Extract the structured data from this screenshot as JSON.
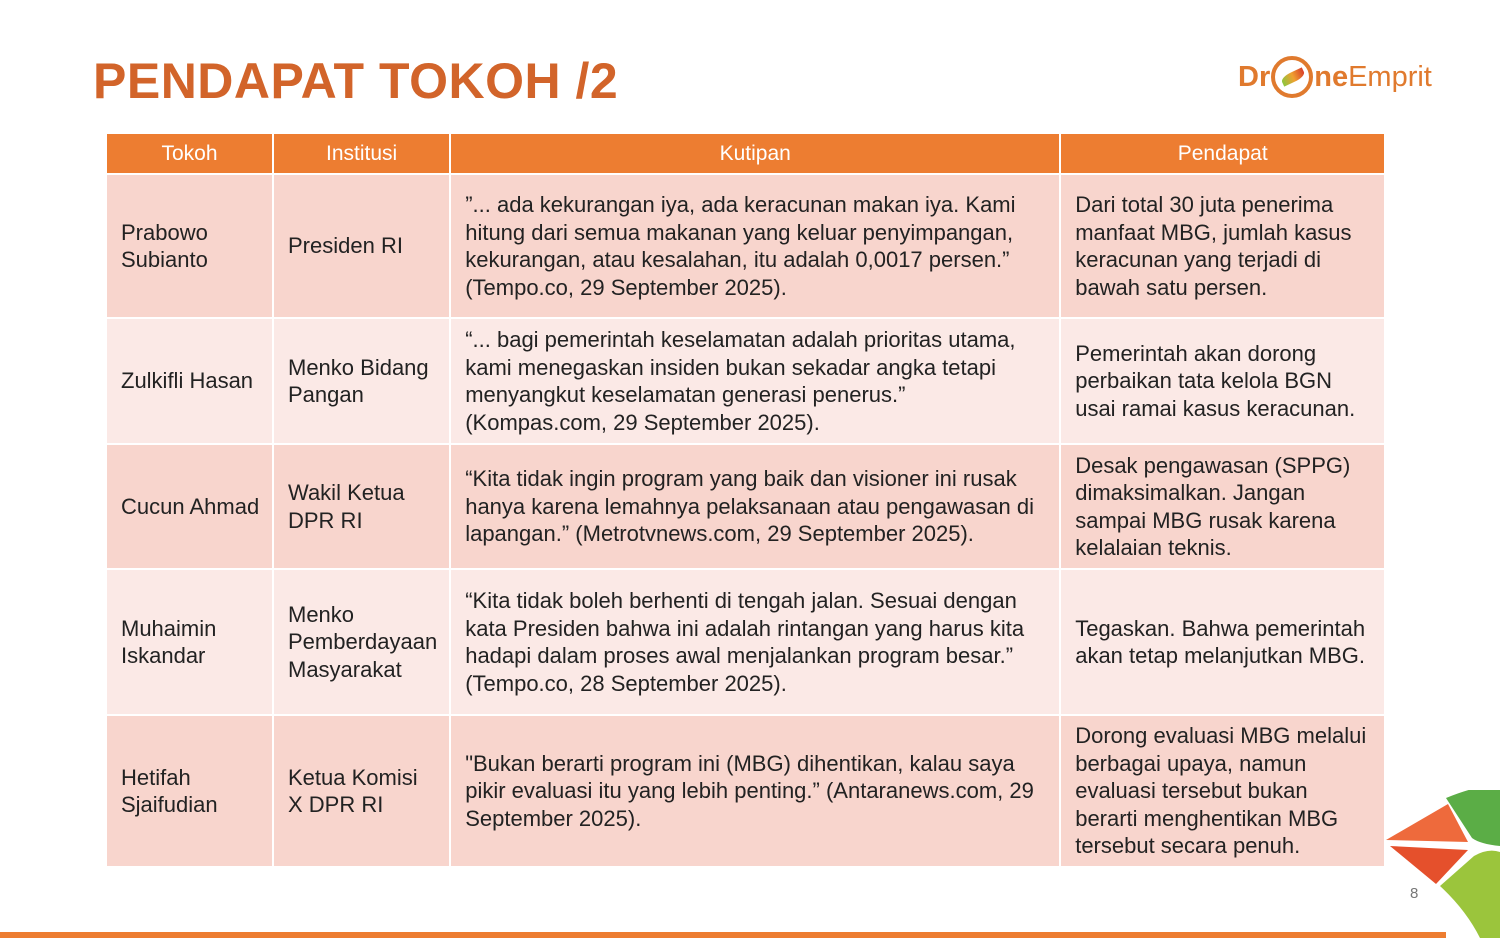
{
  "title": "PENDAPAT TOKOH /2",
  "logo": {
    "pre": "Dr",
    "post_bold": "ne",
    "post": "Emprit"
  },
  "table": {
    "headers": [
      "Tokoh",
      "Institusi",
      "Kutipan",
      "Pendapat"
    ],
    "rows": [
      {
        "tokoh": "Prabowo Subianto",
        "institusi": "Presiden RI",
        "kutipan": "”... ada kekurangan iya, ada keracunan makan iya. Kami hitung dari semua makanan yang keluar penyimpangan, kekurangan, atau kesalahan, itu adalah 0,0017 persen.” (Tempo.co, 29 September 2025).",
        "pendapat": "Dari total 30 juta penerima manfaat MBG, jumlah kasus keracunan yang terjadi di bawah satu persen."
      },
      {
        "tokoh": "Zulkifli Hasan",
        "institusi": "Menko Bidang Pangan",
        "kutipan": "“... bagi pemerintah keselamatan adalah prioritas utama, kami menegaskan insiden bukan sekadar angka tetapi menyangkut keselamatan generasi penerus.” (Kompas.com, 29 September 2025).",
        "pendapat": "Pemerintah akan dorong perbaikan tata kelola BGN usai ramai kasus keracunan."
      },
      {
        "tokoh": "Cucun Ahmad",
        "institusi": "Wakil Ketua DPR RI",
        "kutipan": "“Kita tidak ingin program yang baik dan visioner ini rusak hanya karena lemahnya pelaksanaan atau pengawasan di lapangan.” (Metrotvnews.com, 29 September 2025).",
        "pendapat": "Desak pengawasan (SPPG) dimaksimalkan. Jangan sampai MBG rusak karena kelalaian teknis."
      },
      {
        "tokoh": "Muhaimin Iskandar",
        "institusi": "Menko Pemberdayaan Masyarakat",
        "kutipan": "“Kita tidak boleh berhenti di tengah jalan. Sesuai dengan kata Presiden bahwa ini adalah rintangan yang harus kita hadapi dalam proses awal menjalankan program besar.” (Tempo.co, 28 September 2025).",
        "pendapat": "Tegaskan. Bahwa pemerintah akan tetap melanjutkan MBG."
      },
      {
        "tokoh": "Hetifah Sjaifudian",
        "institusi": "Ketua Komisi X DPR RI",
        "kutipan": "\"Bukan berarti program ini (MBG) dihentikan, kalau saya pikir evaluasi itu yang lebih penting.” (Antaranews.com, 29 September 2025).",
        "pendapat": "Dorong evaluasi MBG melalui berbagai upaya, namun evaluasi tersebut bukan berarti menghentikan MBG tersebut secara penuh."
      }
    ]
  },
  "page_number": "8",
  "colors": {
    "accent": "#ed7d31",
    "title": "#d2642a",
    "row_dark": "#f8d5cd",
    "row_light": "#fbe9e6"
  }
}
